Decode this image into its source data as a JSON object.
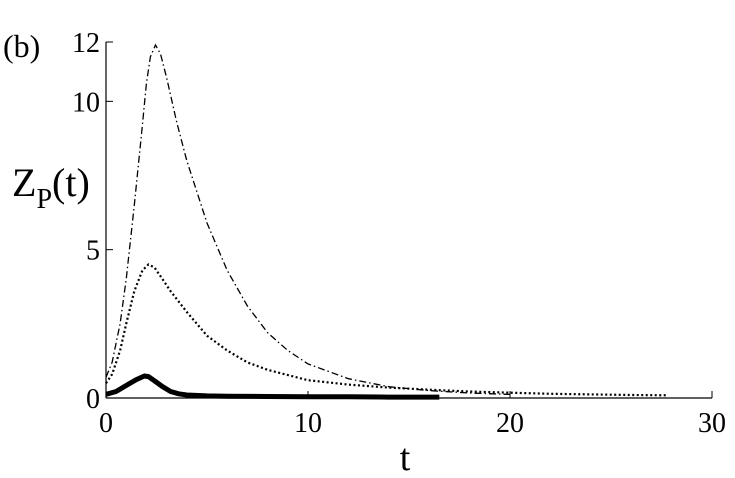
{
  "panel_label": "(b)",
  "chart_data": {
    "type": "line",
    "title": "",
    "xlabel": "t",
    "ylabel": "Z_P(t)",
    "xlim": [
      0,
      30
    ],
    "ylim": [
      0,
      12
    ],
    "xticks": [
      0,
      10,
      20,
      30
    ],
    "yticks": [
      0,
      5,
      10,
      12
    ],
    "grid": false,
    "legend": "none",
    "series": [
      {
        "style": "dash-dot",
        "x": [
          0,
          0.3,
          0.7,
          1.0,
          1.4,
          1.8,
          2.0,
          2.2,
          2.45,
          2.7,
          3.0,
          3.5,
          4.0,
          5.0,
          6.0,
          7.0,
          8.0,
          9.0,
          10.0,
          12.0,
          14.0,
          16.0,
          18.0,
          20.0
        ],
        "y": [
          0.7,
          1.2,
          2.5,
          4.0,
          6.5,
          9.2,
          10.6,
          11.5,
          11.9,
          11.6,
          10.8,
          9.3,
          8.0,
          5.9,
          4.3,
          3.1,
          2.2,
          1.6,
          1.15,
          0.65,
          0.38,
          0.25,
          0.17,
          0.12
        ]
      },
      {
        "style": "dotted",
        "x": [
          0,
          0.3,
          0.7,
          1.0,
          1.4,
          1.8,
          2.1,
          2.4,
          2.8,
          3.2,
          4.0,
          5.0,
          6.0,
          7.0,
          8.0,
          10.0,
          12.0,
          14.0,
          16.0,
          18.0,
          20.0,
          22.0,
          24.0,
          26.0,
          27.8
        ],
        "y": [
          0.5,
          0.8,
          1.6,
          2.5,
          3.6,
          4.3,
          4.5,
          4.4,
          4.0,
          3.6,
          2.9,
          2.1,
          1.6,
          1.2,
          0.95,
          0.6,
          0.45,
          0.35,
          0.28,
          0.22,
          0.18,
          0.14,
          0.12,
          0.1,
          0.09
        ]
      },
      {
        "style": "solid-thick",
        "x": [
          0,
          0.5,
          1.0,
          1.5,
          1.9,
          2.1,
          2.4,
          2.8,
          3.2,
          3.6,
          4.0,
          5.0,
          6.0,
          8.0,
          10.0,
          12.0,
          14.0,
          16.5
        ],
        "y": [
          0.12,
          0.22,
          0.42,
          0.62,
          0.74,
          0.72,
          0.58,
          0.38,
          0.22,
          0.14,
          0.1,
          0.07,
          0.06,
          0.05,
          0.04,
          0.04,
          0.03,
          0.03
        ]
      }
    ]
  }
}
